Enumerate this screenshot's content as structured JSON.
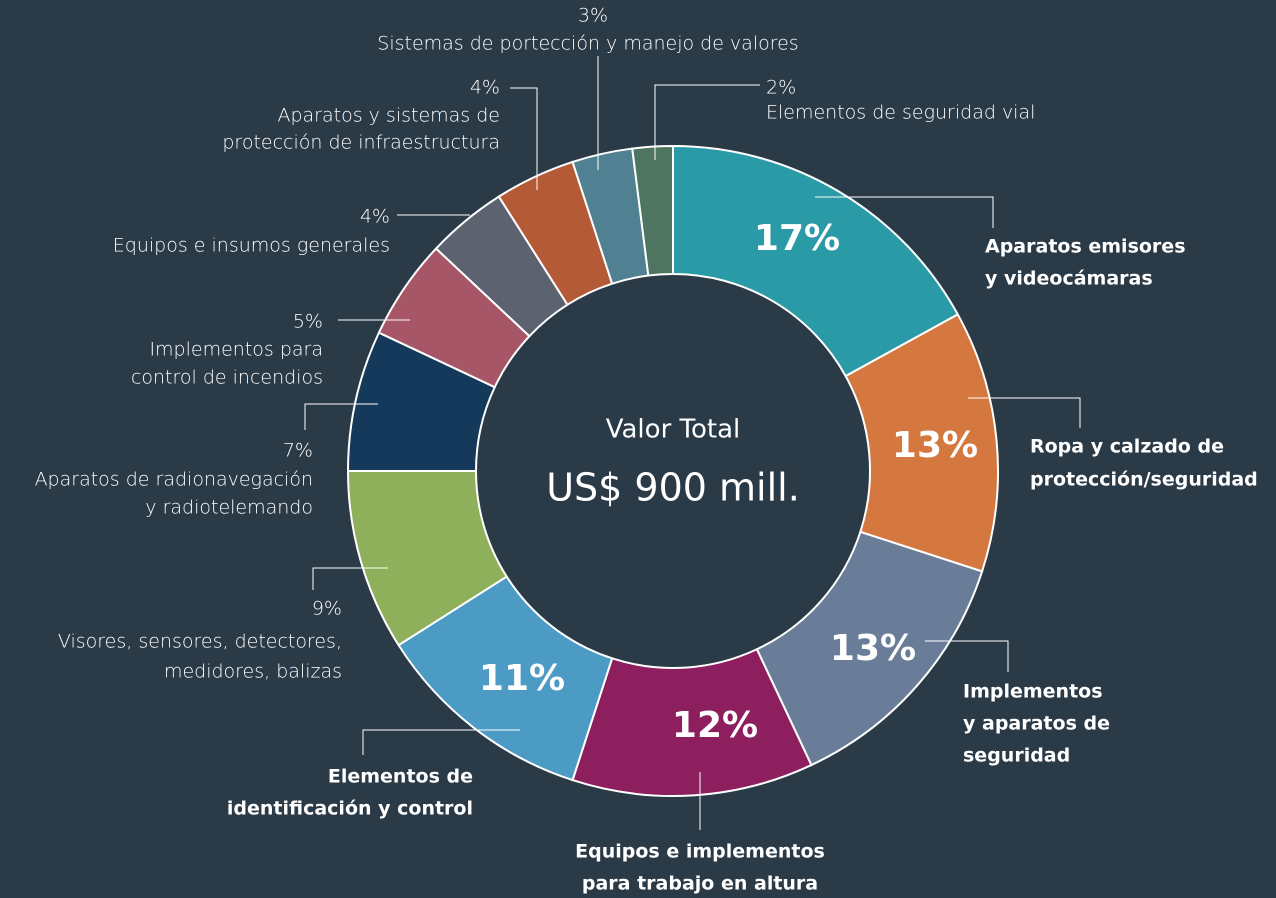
{
  "chart_data": {
    "type": "donut",
    "center_title": "Valor Total",
    "center_value": "US$ 900 mill.",
    "categories": [
      [
        "Aparatos emisores",
        "y videocámaras"
      ],
      [
        "Ropa y calzado de",
        "protección/seguridad"
      ],
      [
        "Implementos",
        "y aparatos de",
        "seguridad"
      ],
      [
        "Equipos e implementos",
        "para trabajo en altura"
      ],
      [
        "Elementos de",
        "identificación y control"
      ],
      [
        "Visores, sensores, detectores,",
        "medidores, balizas"
      ],
      [
        "Aparatos de radionavegación",
        "y radiotelemando"
      ],
      [
        "Implementos para",
        "control de incendios"
      ],
      [
        "Equipos e insumos generales"
      ],
      [
        "Aparatos y sistemas de",
        "protección de infraestructura"
      ],
      [
        "Sistemas de portección y manejo de valores"
      ],
      [
        "Elementos de seguridad vial"
      ]
    ],
    "values": [
      17,
      13,
      13,
      12,
      11,
      9,
      7,
      5,
      4,
      4,
      3,
      2
    ],
    "value_labels": [
      "17%",
      "13%",
      "13%",
      "12%",
      "11%",
      "9%",
      "7%",
      "5%",
      "4%",
      "4%",
      "3%",
      "2%"
    ],
    "colors": [
      "#2a9aa6",
      "#d5783f",
      "#6a7d98",
      "#8d1f5f",
      "#4b9bc5",
      "#8fb05b",
      "#15395a",
      "#a75667",
      "#5d6270",
      "#b45a36",
      "#4f8192",
      "#4e7560"
    ]
  }
}
